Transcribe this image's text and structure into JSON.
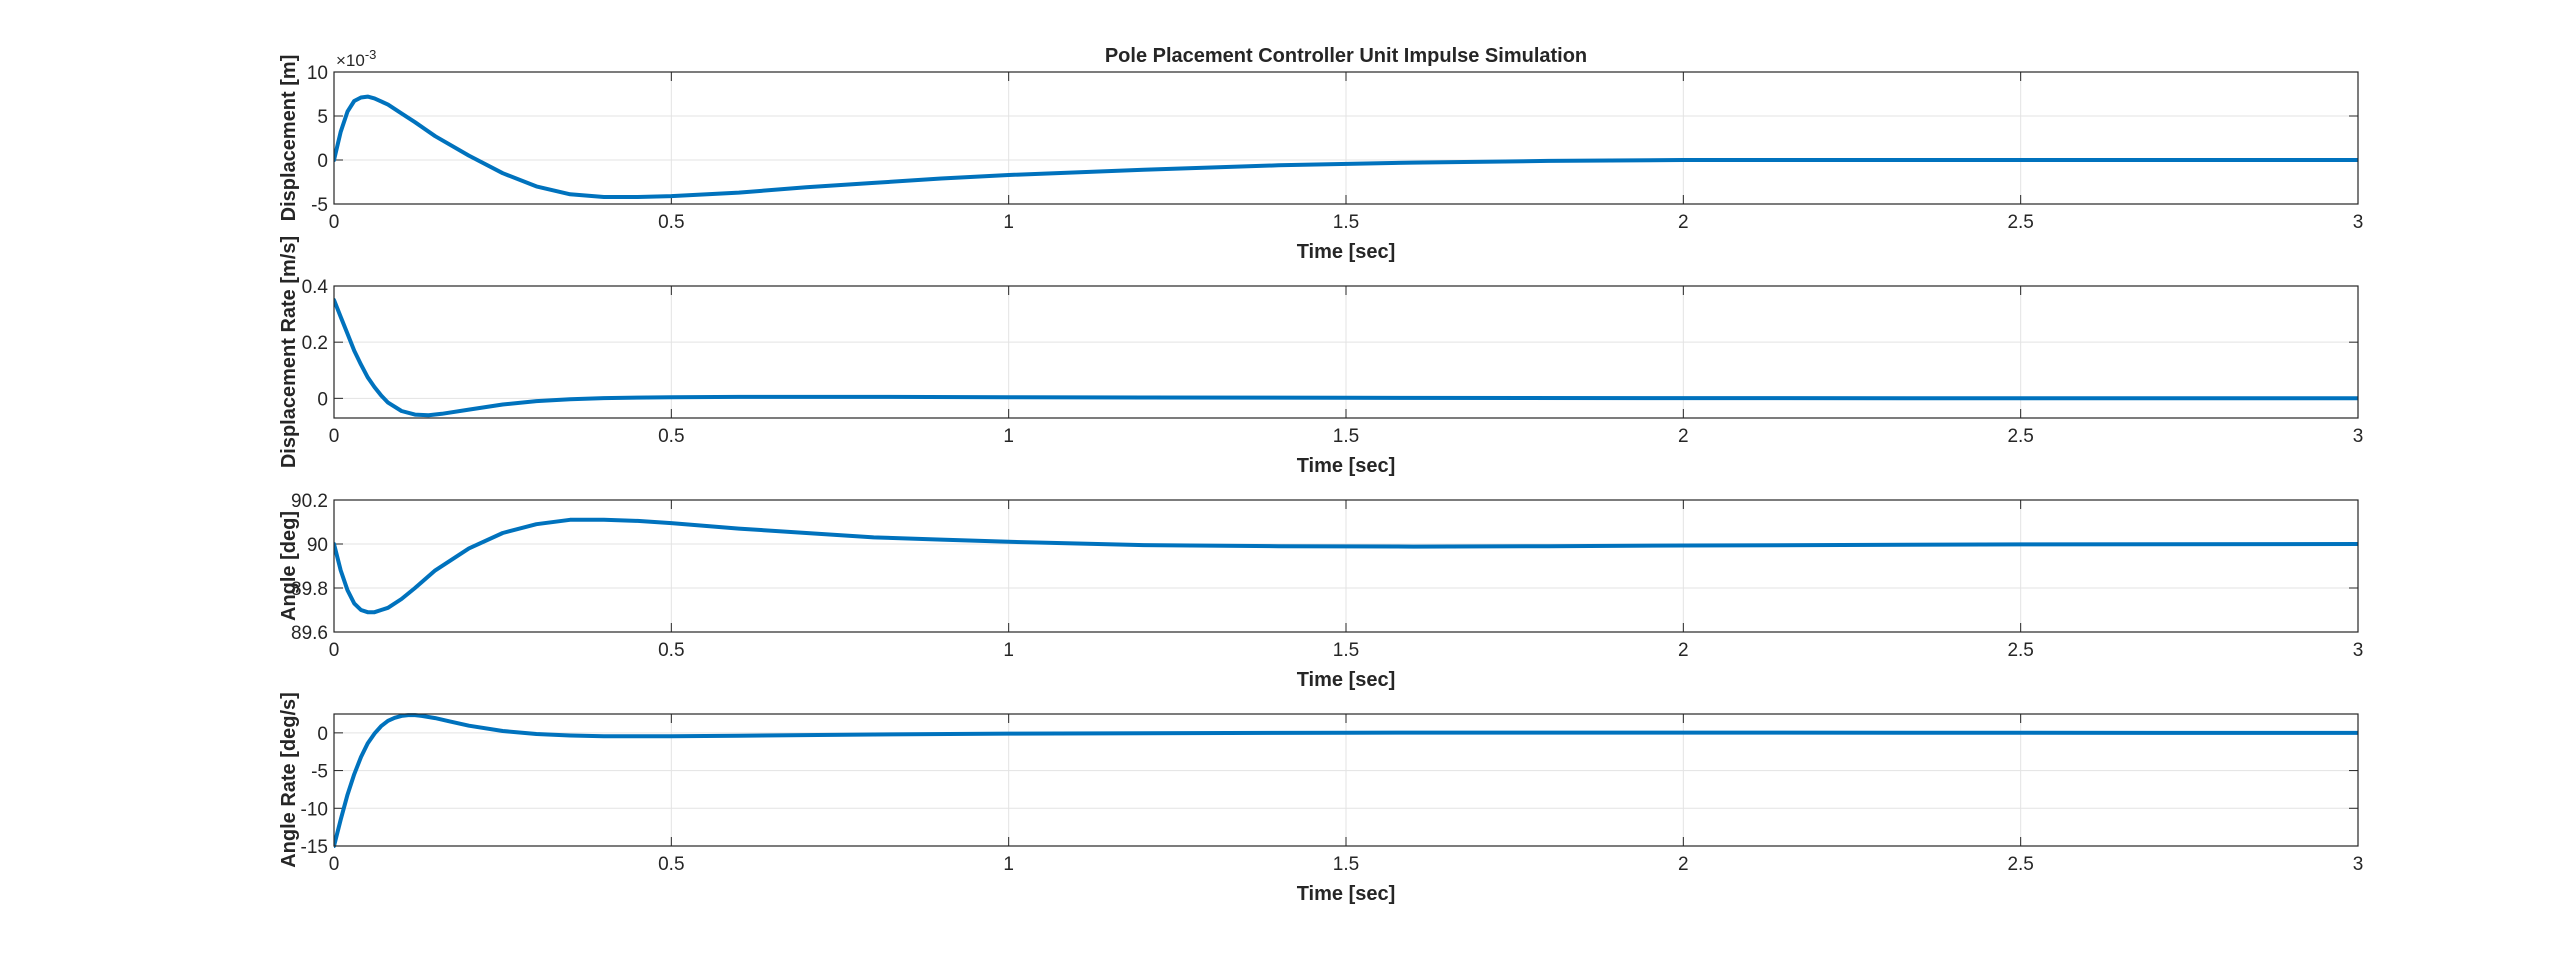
{
  "figure": {
    "title": "Pole Placement Controller Unit Impulse Simulation"
  },
  "chart_data": [
    {
      "type": "line",
      "title": "Pole Placement Controller Unit Impulse Simulation",
      "xlabel": "Time [sec]",
      "ylabel": "Displacement [m]",
      "xlim": [
        0,
        3
      ],
      "ylim": [
        -0.005,
        0.01
      ],
      "xticks": [
        0,
        0.5,
        1,
        1.5,
        2,
        2.5,
        3
      ],
      "xtick_labels": [
        "0",
        "0.5",
        "1",
        "1.5",
        "2",
        "2.5",
        "3"
      ],
      "yticks": [
        -0.005,
        0,
        0.005,
        0.01
      ],
      "ytick_labels": [
        "-5",
        "0",
        "5",
        "10"
      ],
      "y_exponent_label": "×10",
      "y_exponent_power": "-3",
      "grid": true,
      "line_color": "#0072BD",
      "series": [
        {
          "x": [
            0,
            0.01,
            0.02,
            0.03,
            0.04,
            0.05,
            0.06,
            0.08,
            0.1,
            0.12,
            0.15,
            0.2,
            0.25,
            0.3,
            0.35,
            0.4,
            0.45,
            0.5,
            0.6,
            0.7,
            0.8,
            0.9,
            1.0,
            1.2,
            1.4,
            1.6,
            1.8,
            2.0,
            2.5,
            3.0
          ],
          "y": [
            0,
            0.0032,
            0.0055,
            0.0067,
            0.0071,
            0.0072,
            0.007,
            0.0063,
            0.0053,
            0.0043,
            0.0027,
            0.0005,
            -0.0015,
            -0.003,
            -0.0039,
            -0.0042,
            -0.0042,
            -0.0041,
            -0.0037,
            -0.0031,
            -0.0026,
            -0.0021,
            -0.0017,
            -0.0011,
            -0.0006,
            -0.0003,
            -0.0001,
            0,
            0,
            0
          ]
        }
      ]
    },
    {
      "type": "line",
      "xlabel": "Time [sec]",
      "ylabel": "Displacement Rate [m/s]",
      "xlim": [
        0,
        3
      ],
      "ylim": [
        -0.07,
        0.4
      ],
      "xticks": [
        0,
        0.5,
        1,
        1.5,
        2,
        2.5,
        3
      ],
      "xtick_labels": [
        "0",
        "0.5",
        "1",
        "1.5",
        "2",
        "2.5",
        "3"
      ],
      "yticks": [
        0,
        0.2,
        0.4
      ],
      "ytick_labels": [
        "0",
        "0.2",
        "0.4"
      ],
      "grid": true,
      "line_color": "#0072BD",
      "series": [
        {
          "x": [
            0,
            0.01,
            0.02,
            0.03,
            0.04,
            0.05,
            0.06,
            0.07,
            0.08,
            0.1,
            0.12,
            0.14,
            0.16,
            0.2,
            0.25,
            0.3,
            0.35,
            0.4,
            0.5,
            0.6,
            0.8,
            1.0,
            1.5,
            2.0,
            2.5,
            3.0
          ],
          "y": [
            0.35,
            0.29,
            0.23,
            0.17,
            0.12,
            0.075,
            0.04,
            0.01,
            -0.015,
            -0.045,
            -0.058,
            -0.06,
            -0.055,
            -0.04,
            -0.022,
            -0.01,
            -0.003,
            0.001,
            0.004,
            0.005,
            0.005,
            0.004,
            0.002,
            0.001,
            0,
            0
          ]
        }
      ]
    },
    {
      "type": "line",
      "xlabel": "Time [sec]",
      "ylabel": "Angle [deg]",
      "xlim": [
        0,
        3
      ],
      "ylim": [
        89.6,
        90.2
      ],
      "xticks": [
        0,
        0.5,
        1,
        1.5,
        2,
        2.5,
        3
      ],
      "xtick_labels": [
        "0",
        "0.5",
        "1",
        "1.5",
        "2",
        "2.5",
        "3"
      ],
      "yticks": [
        89.6,
        89.8,
        90,
        90.2
      ],
      "ytick_labels": [
        "89.6",
        "89.8",
        "90",
        "90.2"
      ],
      "grid": true,
      "line_color": "#0072BD",
      "series": [
        {
          "x": [
            0,
            0.01,
            0.02,
            0.03,
            0.04,
            0.05,
            0.06,
            0.07,
            0.08,
            0.1,
            0.12,
            0.15,
            0.2,
            0.25,
            0.3,
            0.35,
            0.4,
            0.45,
            0.5,
            0.6,
            0.7,
            0.8,
            0.9,
            1.0,
            1.2,
            1.4,
            1.6,
            1.8,
            2.0,
            2.5,
            3.0
          ],
          "y": [
            90.0,
            89.88,
            89.79,
            89.73,
            89.7,
            89.69,
            89.69,
            89.7,
            89.71,
            89.75,
            89.8,
            89.88,
            89.98,
            90.05,
            90.09,
            90.11,
            90.11,
            90.105,
            90.095,
            90.07,
            90.05,
            90.03,
            90.02,
            90.01,
            89.995,
            89.99,
            89.988,
            89.99,
            89.993,
            89.998,
            90.0
          ]
        }
      ]
    },
    {
      "type": "line",
      "xlabel": "Time [sec]",
      "ylabel": "Angle Rate [deg/s]",
      "xlim": [
        0,
        3
      ],
      "ylim": [
        -15,
        2.5
      ],
      "xticks": [
        0,
        0.5,
        1,
        1.5,
        2,
        2.5,
        3
      ],
      "xtick_labels": [
        "0",
        "0.5",
        "1",
        "1.5",
        "2",
        "2.5",
        "3"
      ],
      "yticks": [
        -15,
        -10,
        -5,
        0
      ],
      "ytick_labels": [
        "-15",
        "-10",
        "-5",
        "0"
      ],
      "grid": true,
      "line_color": "#0072BD",
      "series": [
        {
          "x": [
            0,
            0.01,
            0.02,
            0.03,
            0.04,
            0.05,
            0.06,
            0.07,
            0.08,
            0.09,
            0.1,
            0.11,
            0.12,
            0.13,
            0.15,
            0.17,
            0.2,
            0.25,
            0.3,
            0.35,
            0.4,
            0.5,
            0.6,
            0.8,
            1.0,
            1.5,
            2.0,
            2.5,
            3.0
          ],
          "y": [
            -15,
            -11.5,
            -8.2,
            -5.5,
            -3.2,
            -1.4,
            -0.1,
            0.9,
            1.6,
            2.0,
            2.25,
            2.35,
            2.35,
            2.25,
            1.95,
            1.55,
            0.95,
            0.25,
            -0.15,
            -0.35,
            -0.45,
            -0.45,
            -0.38,
            -0.22,
            -0.1,
            0.02,
            0.03,
            0.01,
            0
          ]
        }
      ]
    }
  ]
}
